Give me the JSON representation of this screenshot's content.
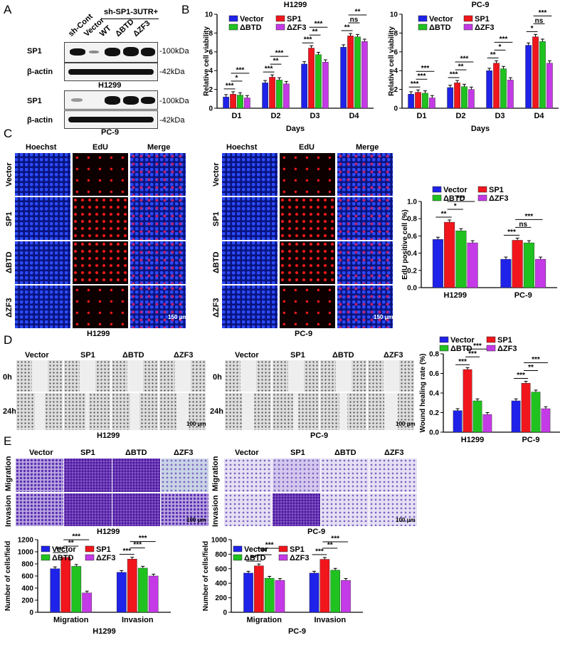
{
  "panels": {
    "A": "A",
    "B": "B",
    "C": "C",
    "D": "D",
    "E": "E"
  },
  "panelA": {
    "header": "sh-SP1-3UTR+",
    "lanes": [
      "sh-Cont",
      "Vector",
      "WT",
      "ΔBTD",
      "ΔZF3"
    ],
    "rows": [
      {
        "protein": "SP1",
        "size": "-100kDa"
      },
      {
        "protein": "β-actin",
        "size": "-42kDa"
      },
      {
        "protein": "SP1",
        "size": "-100kDa"
      },
      {
        "protein": "β-actin",
        "size": "-42kDa"
      }
    ],
    "cell_lines": [
      "H1299",
      "PC-9"
    ]
  },
  "panelC": {
    "columns": [
      "Hoechst",
      "EdU",
      "Merge"
    ],
    "rows": [
      "Vector",
      "SP1",
      "ΔBTD",
      "ΔZF3"
    ],
    "scale": "150 μm",
    "cell_lines": [
      "H1299",
      "PC-9"
    ]
  },
  "panelD": {
    "columns": [
      "Vector",
      "SP1",
      "ΔBTD",
      "ΔZF3"
    ],
    "rows": [
      "0h",
      "24h"
    ],
    "scale": "100 μm",
    "cell_lines": [
      "H1299",
      "PC-9"
    ]
  },
  "panelE": {
    "columns": [
      "Vector",
      "SP1",
      "ΔBTD",
      "ΔZF3"
    ],
    "rows": [
      "Migration",
      "Invasion"
    ],
    "scale": "100 μm",
    "cell_lines": [
      "H1299",
      "PC-9"
    ]
  },
  "colors": {
    "Vector": "#1f22e8",
    "SP1": "#f0161c",
    "ΔBTD": "#1fc21f",
    "ΔZF3": "#c43ae6"
  },
  "legend": [
    "Vector",
    "SP1",
    "ΔBTD",
    "ΔZF3"
  ],
  "chart_data": [
    {
      "id": "viability-h1299",
      "type": "bar",
      "title": "H1299",
      "xlabel": "Days",
      "ylabel": "Relative cell viability",
      "ylim": [
        0,
        10
      ],
      "yticks": [
        0,
        2,
        4,
        6,
        8,
        10
      ],
      "categories": [
        "D1",
        "D2",
        "D3",
        "D4"
      ],
      "series": [
        {
          "name": "Vector",
          "values": [
            1.2,
            2.7,
            4.7,
            6.5
          ]
        },
        {
          "name": "SP1",
          "values": [
            1.5,
            3.3,
            6.4,
            7.7
          ]
        },
        {
          "name": "ΔBTD",
          "values": [
            1.4,
            3.0,
            5.7,
            7.6
          ]
        },
        {
          "name": "ΔZF3",
          "values": [
            1.1,
            2.6,
            4.9,
            7.1
          ]
        }
      ],
      "significance": [
        "***",
        "*",
        "***",
        "***",
        "**",
        "***",
        "***",
        "**",
        "***",
        "**",
        "ns",
        "**"
      ]
    },
    {
      "id": "viability-pc9",
      "type": "bar",
      "title": "PC-9",
      "xlabel": "Days",
      "ylabel": "Relative cell viability",
      "ylim": [
        0,
        10
      ],
      "yticks": [
        0,
        2,
        4,
        6,
        8,
        10
      ],
      "categories": [
        "D1",
        "D2",
        "D3",
        "D4"
      ],
      "series": [
        {
          "name": "Vector",
          "values": [
            1.5,
            2.2,
            4.0,
            6.7
          ]
        },
        {
          "name": "SP1",
          "values": [
            1.7,
            2.7,
            4.8,
            7.6
          ]
        },
        {
          "name": "ΔBTD",
          "values": [
            1.6,
            2.3,
            4.2,
            7.1
          ]
        },
        {
          "name": "ΔZF3",
          "values": [
            1.1,
            2.0,
            3.0,
            4.8
          ]
        }
      ],
      "significance": [
        "***",
        "***",
        "***",
        "***",
        "**",
        "***",
        "**",
        "*",
        "***",
        "*",
        "ns",
        "***"
      ]
    },
    {
      "id": "edu",
      "type": "bar",
      "ylabel": "EdU positive cell (%)",
      "ylim": [
        0,
        1.0
      ],
      "yticks": [
        0.0,
        0.2,
        0.4,
        0.6,
        0.8,
        1.0
      ],
      "categories": [
        "H1299",
        "PC-9"
      ],
      "series": [
        {
          "name": "Vector",
          "values": [
            0.56,
            0.33
          ]
        },
        {
          "name": "SP1",
          "values": [
            0.76,
            0.55
          ]
        },
        {
          "name": "ΔBTD",
          "values": [
            0.66,
            0.52
          ]
        },
        {
          "name": "ΔZF3",
          "values": [
            0.52,
            0.33
          ]
        }
      ],
      "significance": [
        "**",
        "*",
        "***",
        "***",
        "ns",
        "***"
      ]
    },
    {
      "id": "wound",
      "type": "bar",
      "ylabel": "Wound healing rate (%)",
      "ylim": [
        0,
        0.8
      ],
      "yticks": [
        0.0,
        0.2,
        0.4,
        0.6,
        0.8
      ],
      "categories": [
        "H1299",
        "PC-9"
      ],
      "series": [
        {
          "name": "Vector",
          "values": [
            0.22,
            0.32
          ]
        },
        {
          "name": "SP1",
          "values": [
            0.64,
            0.5
          ]
        },
        {
          "name": "ΔBTD",
          "values": [
            0.32,
            0.41
          ]
        },
        {
          "name": "ΔZF3",
          "values": [
            0.18,
            0.24
          ]
        }
      ],
      "significance": [
        "***",
        "***",
        "***",
        "***",
        "**",
        "***"
      ]
    },
    {
      "id": "transwell-h1299",
      "type": "bar",
      "ylabel": "Number of cells/field",
      "xtitle": "H1299",
      "ylim": [
        0,
        1200
      ],
      "yticks": [
        0,
        200,
        400,
        600,
        800,
        1000,
        1200
      ],
      "categories": [
        "Migration",
        "Invasion"
      ],
      "series": [
        {
          "name": "Vector",
          "values": [
            720,
            660
          ]
        },
        {
          "name": "SP1",
          "values": [
            910,
            880
          ]
        },
        {
          "name": "ΔBTD",
          "values": [
            760,
            730
          ]
        },
        {
          "name": "ΔZF3",
          "values": [
            320,
            600
          ]
        }
      ],
      "significance": [
        "***",
        "**",
        "***",
        "***",
        "***",
        "***"
      ]
    },
    {
      "id": "transwell-pc9",
      "type": "bar",
      "ylabel": "Number of cells/field",
      "xtitle": "PC-9",
      "ylim": [
        0,
        1000
      ],
      "yticks": [
        0,
        200,
        400,
        600,
        800,
        1000
      ],
      "categories": [
        "Migration",
        "Invasion"
      ],
      "series": [
        {
          "name": "Vector",
          "values": [
            540,
            540
          ]
        },
        {
          "name": "SP1",
          "values": [
            640,
            730
          ]
        },
        {
          "name": "ΔBTD",
          "values": [
            470,
            580
          ]
        },
        {
          "name": "ΔZF3",
          "values": [
            440,
            440
          ]
        }
      ],
      "significance": [
        "**",
        "**",
        "***",
        "***",
        "**",
        "***"
      ]
    }
  ]
}
